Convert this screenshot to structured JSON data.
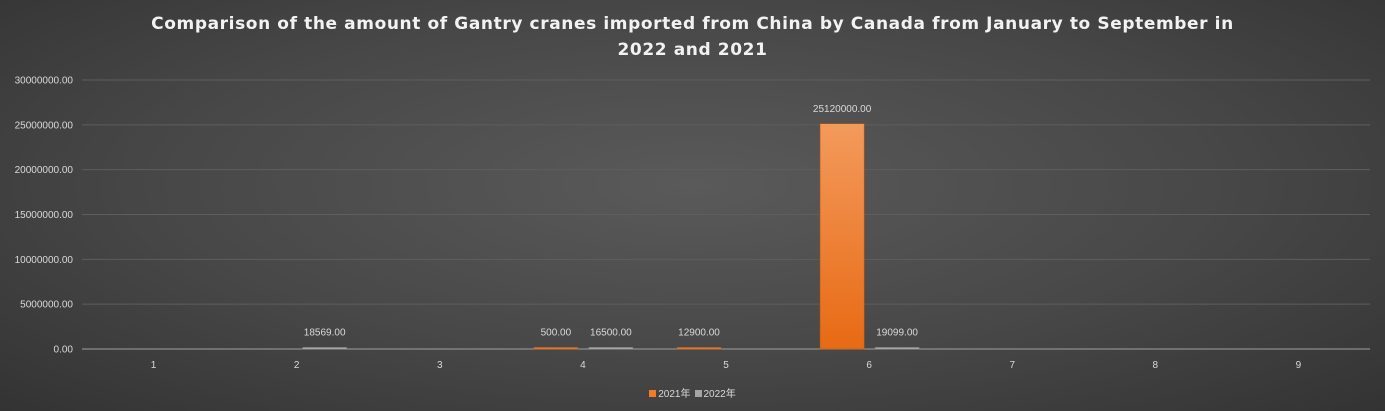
{
  "chart_data": {
    "type": "bar",
    "title": "Comparison of the amount of Gantry cranes imported from China by Canada from January to September in 2022 and 2021",
    "categories": [
      "1",
      "2",
      "3",
      "4",
      "5",
      "6",
      "7",
      "8",
      "9"
    ],
    "series": [
      {
        "name": "2021年",
        "color": "#f07c2a",
        "values": [
          null,
          null,
          null,
          500,
          12900,
          25120000,
          null,
          null,
          null
        ]
      },
      {
        "name": "2022年",
        "color": "#a5a5a5",
        "values": [
          null,
          18569,
          null,
          16500,
          null,
          19099,
          null,
          null,
          null
        ]
      }
    ],
    "ylim": [
      0,
      30000000
    ],
    "yticks": [
      0,
      5000000,
      10000000,
      15000000,
      20000000,
      25000000,
      30000000
    ],
    "ytick_labels": [
      "0.00",
      "5000000.00",
      "10000000.00",
      "15000000.00",
      "20000000.00",
      "25000000.00",
      "30000000.00"
    ],
    "data_labels": true,
    "grid": true,
    "legend": "bottom",
    "xlabel": "",
    "ylabel": ""
  }
}
